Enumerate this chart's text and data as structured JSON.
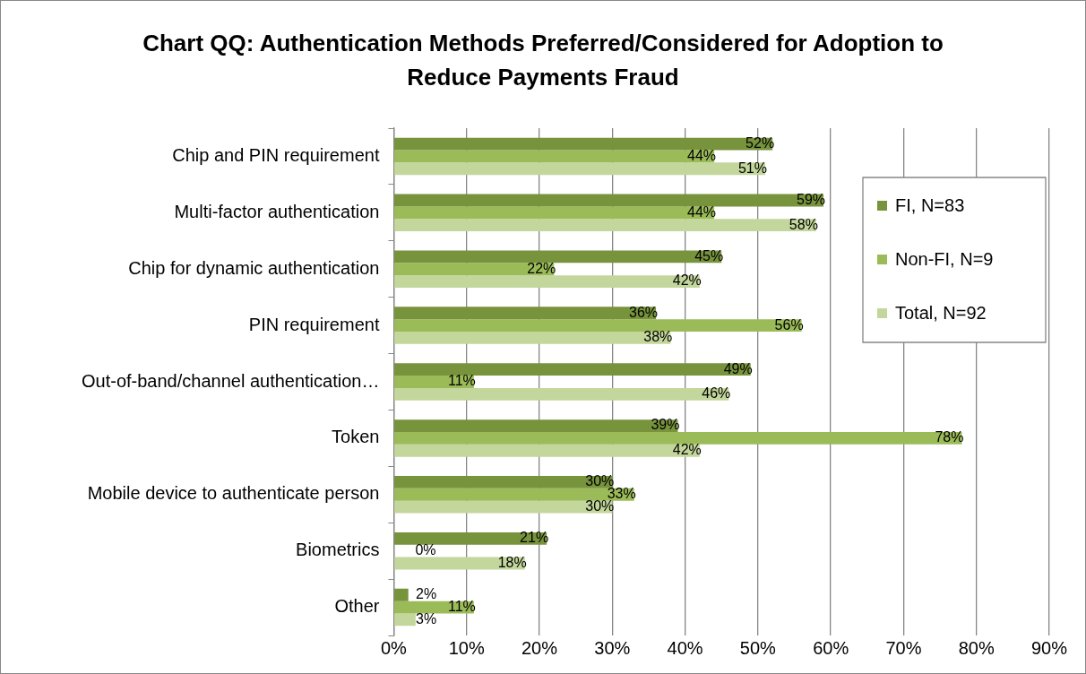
{
  "chart_data": {
    "type": "bar",
    "orientation": "horizontal",
    "title": "Chart QQ: Authentication Methods Preferred/Considered for Adoption to Reduce Payments Fraud",
    "categories": [
      "Chip and PIN requirement",
      "Multi-factor authentication",
      "Chip for dynamic authentication",
      "PIN requirement",
      "Out-of-band/channel authentication…",
      "Token",
      "Mobile device to authenticate person",
      "Biometrics",
      "Other"
    ],
    "series": [
      {
        "name": "FI, N=83",
        "color": "#77933c",
        "values": [
          52,
          59,
          45,
          36,
          49,
          39,
          30,
          21,
          2
        ],
        "value_labels": [
          "52%",
          "59%",
          "45%",
          "36%",
          "49%",
          "39%",
          "30%",
          "21%",
          "2%"
        ]
      },
      {
        "name": "Non-FI, N=9",
        "color": "#9bbb59",
        "values": [
          44,
          44,
          22,
          56,
          11,
          78,
          33,
          0,
          11
        ],
        "value_labels": [
          "44%",
          "44%",
          "22%",
          "56%",
          "11%",
          "78%",
          "33%",
          "0%",
          "11%"
        ]
      },
      {
        "name": "Total, N=92",
        "color": "#c3d69b",
        "values": [
          51,
          58,
          42,
          38,
          46,
          42,
          30,
          18,
          3
        ],
        "value_labels": [
          "51%",
          "58%",
          "42%",
          "38%",
          "46%",
          "42%",
          "30%",
          "18%",
          "3%"
        ]
      }
    ],
    "xlim": [
      0,
      90
    ],
    "xticks": [
      {
        "value": 0,
        "label": "0%"
      },
      {
        "value": 10,
        "label": "10%"
      },
      {
        "value": 20,
        "label": "20%"
      },
      {
        "value": 30,
        "label": "30%"
      },
      {
        "value": 40,
        "label": "40%"
      },
      {
        "value": 50,
        "label": "50%"
      },
      {
        "value": 60,
        "label": "60%"
      },
      {
        "value": 70,
        "label": "70%"
      },
      {
        "value": 80,
        "label": "80%"
      },
      {
        "value": 90,
        "label": "90%"
      }
    ],
    "grid": "x",
    "legend": "top right"
  }
}
